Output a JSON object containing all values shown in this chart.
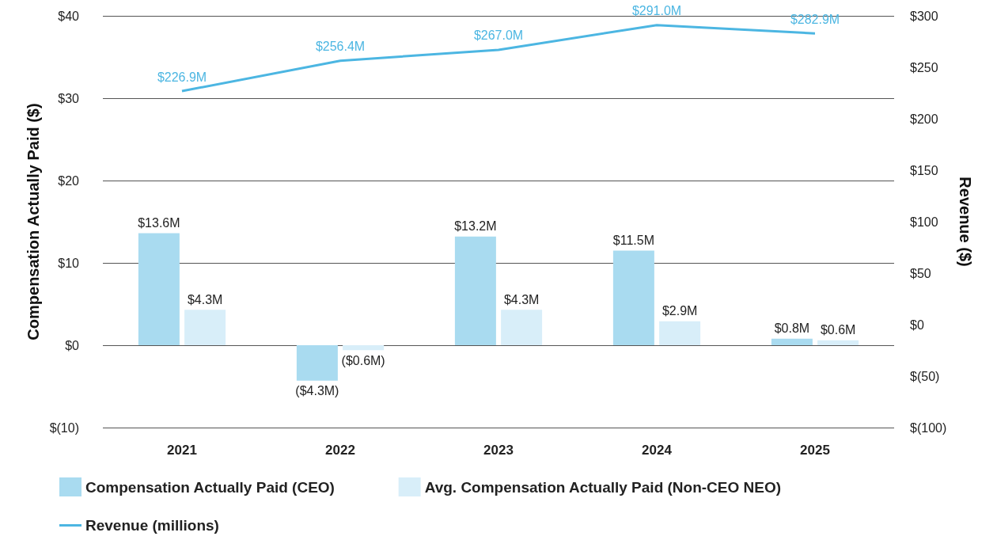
{
  "chart_data": {
    "type": "bar",
    "categories": [
      "2021",
      "2022",
      "2023",
      "2024",
      "2025"
    ],
    "ylabel": "Compensation Actually Paid ($)",
    "y2label": "Revenue ($)",
    "series": [
      {
        "name": "Compensation Actually Paid (CEO)",
        "color": "#a9dbf0",
        "values": [
          13.6,
          -4.3,
          13.2,
          11.5,
          0.8
        ],
        "value_labels": [
          "$13.6M",
          "($4.3M)",
          "$13.2M",
          "$11.5M",
          "$0.8M"
        ]
      },
      {
        "name": "Avg. Compensation Actually Paid (Non-CEO NEO)",
        "color": "#d8eef9",
        "values": [
          4.3,
          -0.6,
          4.3,
          2.9,
          0.6
        ],
        "value_labels": [
          "$4.3M",
          "($0.6M)",
          "$4.3M",
          "$2.9M",
          "$0.6M"
        ]
      },
      {
        "name": "Revenue (millions)",
        "type": "line",
        "axis": "y2",
        "color": "#4cb6e2",
        "values": [
          226.9,
          256.4,
          267.0,
          291.0,
          282.9
        ],
        "value_labels": [
          "$226.9M",
          "$256.4M",
          "$267.0M",
          "$291.0M",
          "$282.9M"
        ]
      }
    ],
    "ylim": [
      -10,
      40
    ],
    "yticks": [
      {
        "value": -10,
        "label": "$(10)"
      },
      {
        "value": 0,
        "label": "$0"
      },
      {
        "value": 10,
        "label": "$10"
      },
      {
        "value": 20,
        "label": "$20"
      },
      {
        "value": 30,
        "label": "$30"
      },
      {
        "value": 40,
        "label": "$40"
      }
    ],
    "y2lim": [
      -100,
      300
    ],
    "y2ticks": [
      {
        "value": -100,
        "label": "$(100)"
      },
      {
        "value": -50,
        "label": "$(50)"
      },
      {
        "value": 0,
        "label": "$0"
      },
      {
        "value": 50,
        "label": "$50"
      },
      {
        "value": 100,
        "label": "$100"
      },
      {
        "value": 150,
        "label": "$150"
      },
      {
        "value": 200,
        "label": "$200"
      },
      {
        "value": 250,
        "label": "$250"
      },
      {
        "value": 300,
        "label": "$300"
      }
    ],
    "grid": "y",
    "legend": "bottom left",
    "marker": "none"
  }
}
